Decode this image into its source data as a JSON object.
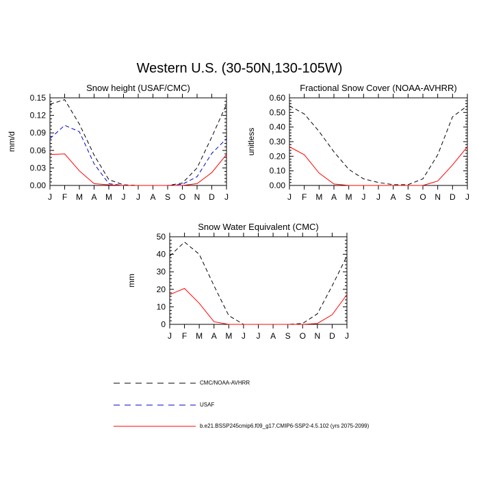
{
  "figure_title": "Western U.S. (30-50N,130-105W)",
  "legend": [
    {
      "label": "CMC/NOAA-AVHRR",
      "color": "#000000",
      "dash": "dashed"
    },
    {
      "label": "USAF",
      "color": "#0000cc",
      "dash": "dashed"
    },
    {
      "label": "b.e21.BSSP245cmip6.f09_g17.CMIP6-SSP2-4.5.102 (yrs 2075-2099)",
      "color": "#ff0000",
      "dash": "solid"
    }
  ],
  "chart_data": [
    {
      "type": "line",
      "title": "Snow height (USAF/CMC)",
      "xlabel": "",
      "ylabel": "mm/d",
      "categories": [
        "J",
        "F",
        "M",
        "A",
        "M",
        "J",
        "J",
        "A",
        "S",
        "O",
        "N",
        "D",
        "J"
      ],
      "ylim": [
        0,
        0.15
      ],
      "yticks": [
        "0.00",
        "0.03",
        "0.06",
        "0.09",
        "0.12",
        "0.15"
      ],
      "series": [
        {
          "name": "CMC/NOAA-AVHRR",
          "color": "#000000",
          "dash": "dashed",
          "values": [
            0.139,
            0.147,
            0.105,
            0.052,
            0.01,
            0.001,
            0.0,
            0.0,
            0.0,
            0.004,
            0.03,
            0.083,
            0.139
          ]
        },
        {
          "name": "USAF",
          "color": "#0000cc",
          "dash": "dashed",
          "values": [
            0.08,
            0.103,
            0.092,
            0.037,
            0.003,
            0.0,
            0.0,
            0.0,
            0.0,
            0.002,
            0.015,
            0.055,
            0.08
          ]
        },
        {
          "name": "b.e21.BSSP245cmip6.f09_g17.CMIP6-SSP2-4.5.102 (yrs 2075-2099)",
          "color": "#ff0000",
          "dash": "solid",
          "values": [
            0.053,
            0.054,
            0.025,
            0.003,
            0.001,
            0.0,
            0.0,
            0.0,
            0.0,
            0.0,
            0.003,
            0.022,
            0.053
          ]
        }
      ]
    },
    {
      "type": "line",
      "title": "Fractional Snow Cover (NOAA-AVHRR)",
      "xlabel": "",
      "ylabel": "unitless",
      "categories": [
        "J",
        "F",
        "M",
        "A",
        "M",
        "J",
        "J",
        "A",
        "S",
        "O",
        "N",
        "D",
        "J"
      ],
      "ylim": [
        0,
        0.6
      ],
      "yticks": [
        "0.00",
        "0.10",
        "0.20",
        "0.30",
        "0.40",
        "0.50",
        "0.60"
      ],
      "series": [
        {
          "name": "CMC/NOAA-AVHRR",
          "color": "#000000",
          "dash": "dashed",
          "values": [
            0.545,
            0.49,
            0.37,
            0.23,
            0.11,
            0.045,
            0.02,
            0.005,
            0.005,
            0.045,
            0.21,
            0.47,
            0.545
          ]
        },
        {
          "name": "b.e21.BSSP245cmip6.f09_g17.CMIP6-SSP2-4.5.102 (yrs 2075-2099)",
          "color": "#ff0000",
          "dash": "solid",
          "values": [
            0.265,
            0.21,
            0.085,
            0.01,
            0.0,
            0.0,
            0.0,
            0.0,
            0.0,
            0.0,
            0.03,
            0.14,
            0.265
          ]
        }
      ]
    },
    {
      "type": "line",
      "title": "Snow Water Equivalent (CMC)",
      "xlabel": "",
      "ylabel": "mm",
      "categories": [
        "J",
        "F",
        "M",
        "A",
        "M",
        "J",
        "J",
        "A",
        "S",
        "O",
        "N",
        "D",
        "J"
      ],
      "ylim": [
        0,
        50
      ],
      "yticks": [
        "0",
        "10",
        "20",
        "30",
        "40",
        "50"
      ],
      "series": [
        {
          "name": "CMC/NOAA-AVHRR",
          "color": "#000000",
          "dash": "dashed",
          "values": [
            39.0,
            47.0,
            40.0,
            22.0,
            5.0,
            0.0,
            0.0,
            0.0,
            0.0,
            0.5,
            6.0,
            22.0,
            39.0
          ]
        },
        {
          "name": "b.e21.BSSP245cmip6.f09_g17.CMIP6-SSP2-4.5.102 (yrs 2075-2099)",
          "color": "#ff0000",
          "dash": "solid",
          "values": [
            17.0,
            20.5,
            12.0,
            1.5,
            0.0,
            0.0,
            0.0,
            0.0,
            0.0,
            0.0,
            0.5,
            5.5,
            17.0
          ]
        }
      ]
    }
  ]
}
